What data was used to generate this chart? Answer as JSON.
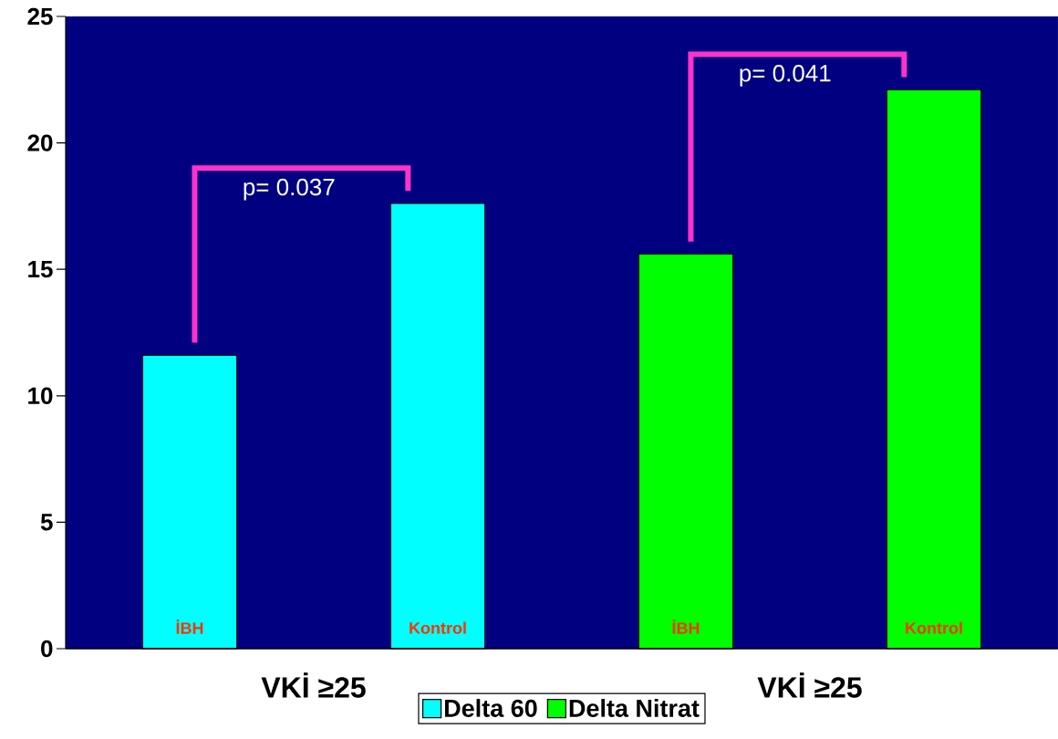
{
  "chart_data": {
    "type": "bar",
    "categories": [
      "İBH",
      "Kontrol",
      "İBH",
      "Kontrol"
    ],
    "series": [
      {
        "name": "Delta 60",
        "color": "#00ffff",
        "values": [
          11.6,
          17.6,
          null,
          null
        ]
      },
      {
        "name": "Delta Nitrat",
        "color": "#00ff00",
        "values": [
          null,
          null,
          15.6,
          22.1
        ]
      }
    ],
    "ylim": [
      0,
      25
    ],
    "yticks": [
      0,
      5,
      10,
      15,
      20,
      25
    ],
    "annotations": [
      "p= 0.037",
      "p= 0.041",
      "VKİ ≥25",
      "VKİ ≥25"
    ],
    "legend": "bottom"
  }
}
